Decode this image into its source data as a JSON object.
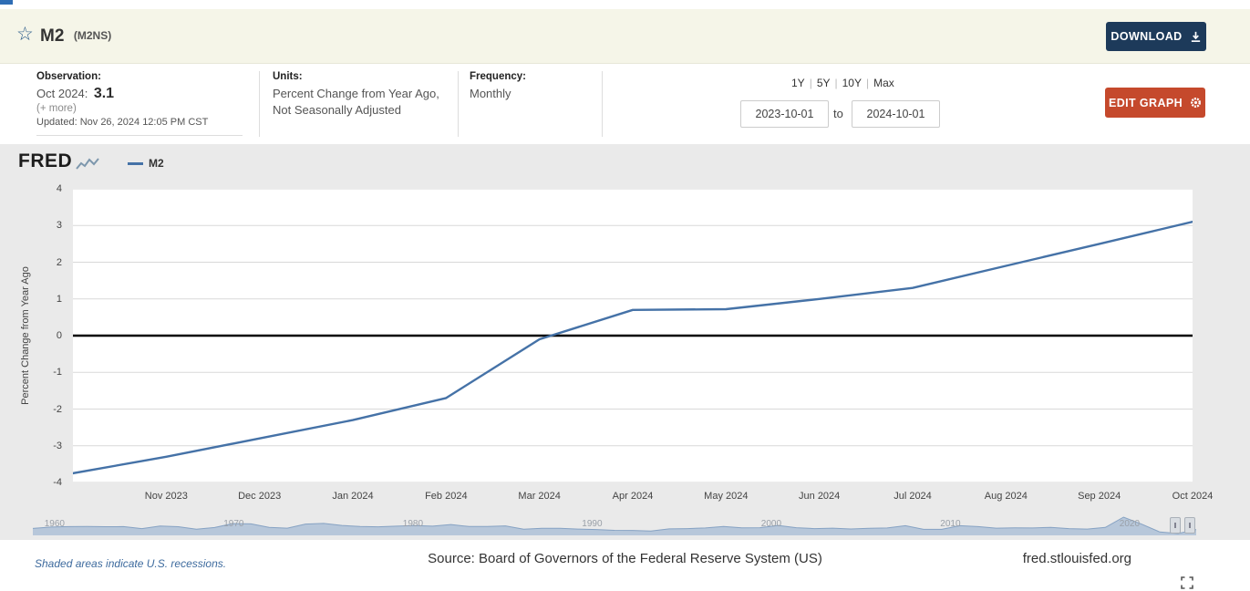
{
  "header": {
    "title": "M2",
    "series_id": "(M2NS)",
    "star_icon": "☆",
    "download_label": "DOWNLOAD"
  },
  "info": {
    "observation": {
      "label": "Observation:",
      "date": "Oct 2024:",
      "value": "3.1",
      "more_label": "(+ more)",
      "updated": "Updated: Nov 26, 2024 12:05 PM CST"
    },
    "units": {
      "label": "Units:",
      "line1": "Percent Change from Year Ago,",
      "line2": "Not Seasonally Adjusted"
    },
    "frequency": {
      "label": "Frequency:",
      "value": "Monthly"
    }
  },
  "controls": {
    "ranges": [
      "1Y",
      "5Y",
      "10Y",
      "Max"
    ],
    "range_separator": "|",
    "date_start": "2023-10-01",
    "to_label": "to",
    "date_end": "2024-10-01",
    "edit_graph_label": "EDIT GRAPH"
  },
  "chart": {
    "logo_text": "FRED",
    "legend_label": "M2"
  },
  "slider": {
    "handle_glyph": "‖",
    "decade_labels": [
      "1960",
      "1970",
      "1980",
      "1990",
      "2000",
      "2010",
      "2020"
    ],
    "spark": [
      4.9,
      7.4,
      8.1,
      8.4,
      8.0,
      8.1,
      4.6,
      9.3,
      8.0,
      3.7,
      6.6,
      13.4,
      13.0,
      6.9,
      5.5,
      12.6,
      13.7,
      10.3,
      8.3,
      7.8,
      8.9,
      10.0,
      8.9,
      11.8,
      8.4,
      8.5,
      9.5,
      3.5,
      5.2,
      5.1,
      3.8,
      3.1,
      1.6,
      1.5,
      0.4,
      4.1,
      4.6,
      5.7,
      8.5,
      6.0,
      6.2,
      10.3,
      6.3,
      4.6,
      5.4,
      4.0,
      5.2,
      5.7,
      9.7,
      3.4,
      3.4,
      9.7,
      8.2,
      5.4,
      5.9,
      5.8,
      6.9,
      4.7,
      3.9,
      6.7,
      24.8,
      12.5,
      -1.3,
      -4.0,
      3.1
    ]
  },
  "footer": {
    "recessions_note": "Shaded areas indicate U.S. recessions.",
    "source": "Source: Board of Governors of the Federal Reserve System (US)",
    "site": "fred.stlouisfed.org"
  },
  "colors": {
    "series_blue": "#4572a7",
    "download_button": "#1d3a5a",
    "edit_button": "#c5492c",
    "header_background": "#f5f5e8",
    "chart_background": "#eaeaea"
  },
  "chart_data": {
    "type": "line",
    "title": "M2",
    "xlabel": "",
    "ylabel": "Percent Change from Year Ago",
    "ylim": [
      -4,
      4
    ],
    "yticks": [
      4,
      3,
      2,
      1,
      0,
      -1,
      -2,
      -3,
      -4
    ],
    "grid": true,
    "zero_line": true,
    "legend_position": "top-left",
    "x": [
      "Oct 2023",
      "Nov 2023",
      "Dec 2023",
      "Jan 2024",
      "Feb 2024",
      "Mar 2024",
      "Apr 2024",
      "May 2024",
      "Jun 2024",
      "Jul 2024",
      "Aug 2024",
      "Sep 2024",
      "Oct 2024"
    ],
    "x_tick_labels": [
      "Nov 2023",
      "Dec 2023",
      "Jan 2024",
      "Feb 2024",
      "Mar 2024",
      "Apr 2024",
      "May 2024",
      "Jun 2024",
      "Jul 2024",
      "Aug 2024",
      "Sep 2024",
      "Oct 2024"
    ],
    "series": [
      {
        "name": "M2",
        "color": "#4572a7",
        "values": [
          -3.75,
          -3.3,
          -2.8,
          -2.3,
          -1.7,
          -0.1,
          0.7,
          0.72,
          1.0,
          1.3,
          1.9,
          2.5,
          3.1
        ]
      }
    ]
  }
}
